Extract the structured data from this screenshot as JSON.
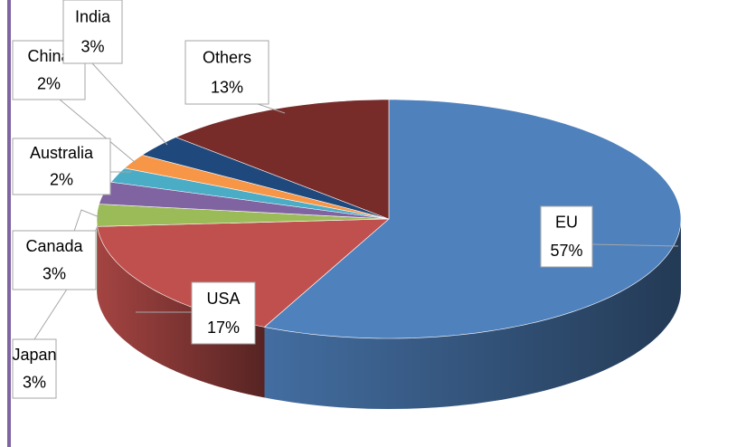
{
  "chart_data": {
    "type": "pie",
    "categories": [
      "EU",
      "USA",
      "Japan",
      "Canada",
      "Australia",
      "China",
      "India",
      "Others"
    ],
    "values": [
      57,
      17,
      3,
      3,
      2,
      2,
      3,
      13
    ],
    "value_labels": [
      "57%",
      "17%",
      "3%",
      "3%",
      "2%",
      "2%",
      "3%",
      "13%"
    ],
    "colors": [
      "#4f81bd",
      "#c0504d",
      "#9bbb59",
      "#8064a2",
      "#4bacc6",
      "#f79646",
      "#1f497d",
      "#772c2a"
    ]
  }
}
